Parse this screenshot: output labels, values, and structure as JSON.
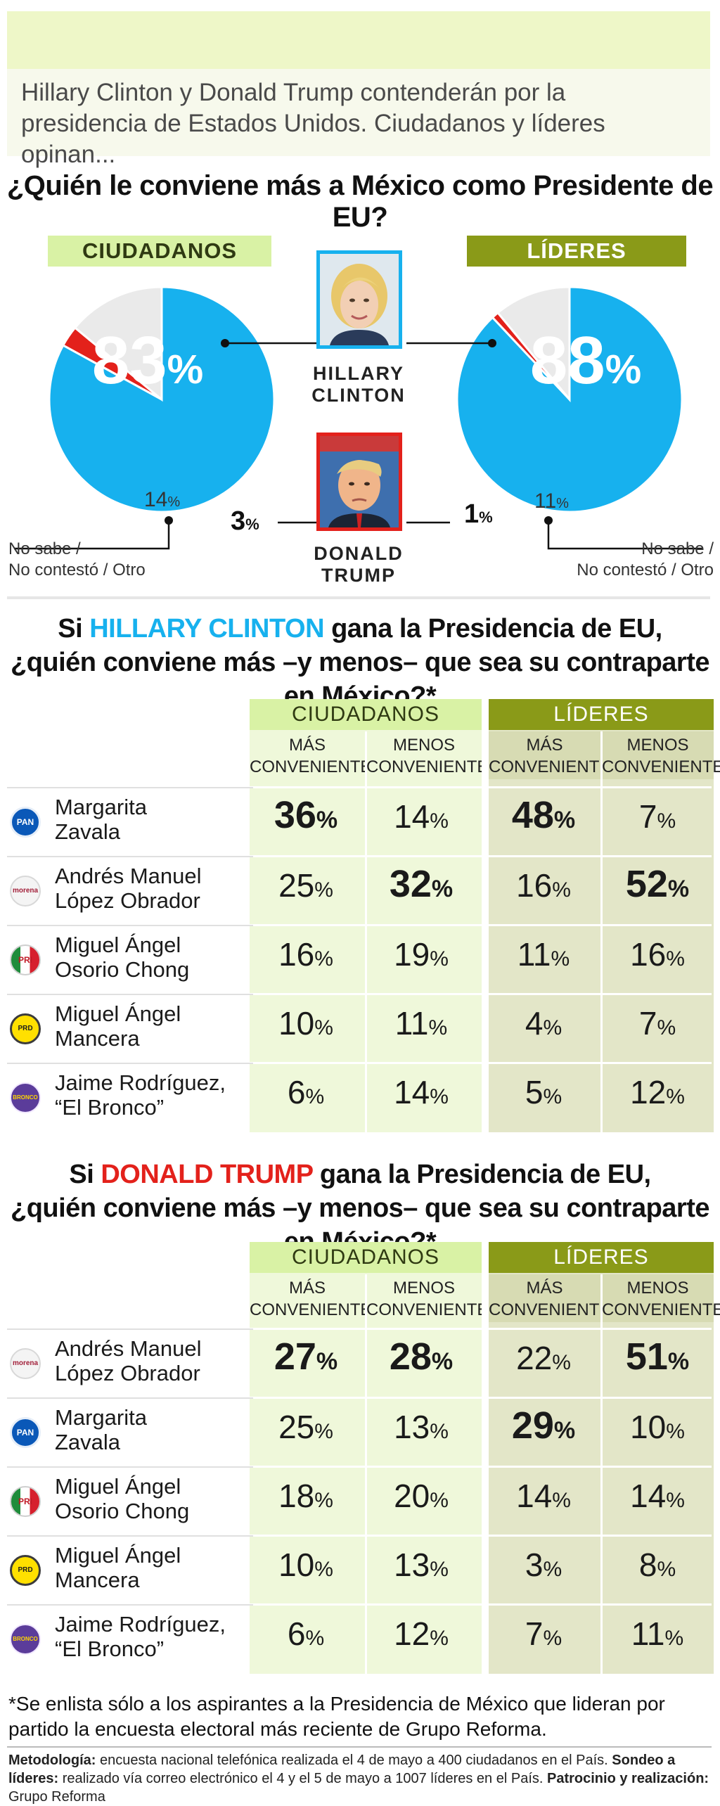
{
  "header": {
    "intro": "Hillary Clinton y Donald Trump contenderán por la presidencia de Estados Unidos. Ciudadanos y líderes opinan..."
  },
  "question1": "¿Quién le conviene más a México como Presidente de EU?",
  "groups": {
    "ciudadanos": "CIUDADANOS",
    "lideres": "LÍDERES"
  },
  "candidates": {
    "clinton": "HILLARY CLINTON",
    "trump": "DONALD TRUMP"
  },
  "pie_labels": {
    "ciud_clinton": "83",
    "ciud_trump": "3",
    "ciud_other": "14",
    "lid_clinton": "88",
    "lid_trump": "1",
    "lid_other": "11",
    "pct": "%",
    "nosabe_1": "No sabe /",
    "nosabe_2": "No contestó / Otro"
  },
  "colors": {
    "clinton": "#17b1ee",
    "trump": "#e3211b",
    "other": "#eaeaea",
    "ciud_band": "#d9f2a5",
    "lid_band": "#8a9a18"
  },
  "section2": {
    "q_pre": "Si ",
    "q_name": "HILLARY CLINTON",
    "q_post": " gana la Presidencia de EU,",
    "q_line2": "¿quién conviene más –y menos– que sea su contraparte en México?*"
  },
  "section3": {
    "q_pre": "Si ",
    "q_name": "DONALD TRUMP",
    "q_post": " gana la Presidencia de EU,",
    "q_line2": "¿quién conviene más –y menos– que sea su contraparte en México?*"
  },
  "table_headers": {
    "mas_1": "MÁS",
    "mas_2": "CONVENIENTE",
    "menos_1": "MENOS",
    "menos_2": "CONVENIENTE"
  },
  "party_logos": {
    "pan": "PAN",
    "morena": "morena",
    "pri": "PRI",
    "prd": "PRD",
    "bronco": "BRONCO"
  },
  "chart_data": [
    {
      "type": "pie",
      "title": "CIUDADANOS",
      "categories": [
        "HILLARY CLINTON",
        "DONALD TRUMP",
        "No sabe / No contestó / Otro"
      ],
      "values": [
        83,
        3,
        14
      ]
    },
    {
      "type": "pie",
      "title": "LÍDERES",
      "categories": [
        "HILLARY CLINTON",
        "DONALD TRUMP",
        "No sabe / No contestó / Otro"
      ],
      "values": [
        88,
        1,
        11
      ]
    },
    {
      "type": "table",
      "title": "Si HILLARY CLINTON gana la Presidencia de EU, ¿quién conviene más –y menos– que sea su contraparte en México?*",
      "columns": [
        "CIUDADANOS MÁS CONVENIENTE",
        "CIUDADANOS MENOS CONVENIENTE",
        "LÍDERES MÁS CONVENIENTE",
        "LÍDERES MENOS CONVENIENTE"
      ],
      "rows": [
        {
          "name_1": "Margarita",
          "name_2": "Zavala",
          "party": "pan",
          "values": [
            36,
            14,
            48,
            7
          ],
          "bold": [
            true,
            false,
            true,
            false
          ]
        },
        {
          "name_1": "Andrés Manuel",
          "name_2": "López Obrador",
          "party": "morena",
          "values": [
            25,
            32,
            16,
            52
          ],
          "bold": [
            false,
            true,
            false,
            true
          ]
        },
        {
          "name_1": "Miguel Ángel",
          "name_2": "Osorio Chong",
          "party": "pri",
          "values": [
            16,
            19,
            11,
            16
          ],
          "bold": [
            false,
            false,
            false,
            false
          ]
        },
        {
          "name_1": "Miguel Ángel",
          "name_2": "Mancera",
          "party": "prd",
          "values": [
            10,
            11,
            4,
            7
          ],
          "bold": [
            false,
            false,
            false,
            false
          ]
        },
        {
          "name_1": "Jaime Rodríguez,",
          "name_2": "“El Bronco”",
          "party": "bronco",
          "values": [
            6,
            14,
            5,
            12
          ],
          "bold": [
            false,
            false,
            false,
            false
          ]
        }
      ]
    },
    {
      "type": "table",
      "title": "Si DONALD TRUMP gana la Presidencia de EU, ¿quién conviene más –y menos– que sea su contraparte en México?*",
      "columns": [
        "CIUDADANOS MÁS CONVENIENTE",
        "CIUDADANOS MENOS CONVENIENTE",
        "LÍDERES MÁS CONVENIENTE",
        "LÍDERES MENOS CONVENIENTE"
      ],
      "rows": [
        {
          "name_1": "Andrés Manuel",
          "name_2": "López Obrador",
          "party": "morena",
          "values": [
            27,
            28,
            22,
            51
          ],
          "bold": [
            true,
            true,
            false,
            true
          ]
        },
        {
          "name_1": "Margarita",
          "name_2": "Zavala",
          "party": "pan",
          "values": [
            25,
            13,
            29,
            10
          ],
          "bold": [
            false,
            false,
            true,
            false
          ]
        },
        {
          "name_1": "Miguel Ángel",
          "name_2": "Osorio Chong",
          "party": "pri",
          "values": [
            18,
            20,
            14,
            14
          ],
          "bold": [
            false,
            false,
            false,
            false
          ]
        },
        {
          "name_1": "Miguel Ángel",
          "name_2": "Mancera",
          "party": "prd",
          "values": [
            10,
            13,
            3,
            8
          ],
          "bold": [
            false,
            false,
            false,
            false
          ]
        },
        {
          "name_1": "Jaime Rodríguez,",
          "name_2": "“El Bronco”",
          "party": "bronco",
          "values": [
            6,
            12,
            7,
            11
          ],
          "bold": [
            false,
            false,
            false,
            false
          ]
        }
      ]
    }
  ],
  "footer": {
    "note": "*Se enlista sólo a los aspirantes a la Presidencia de México que lideran por partido la encuesta electoral más reciente de Grupo Reforma.",
    "met_label": "Metodología:",
    "met_text": " encuesta nacional telefónica realizada el 4 de mayo a 400 ciudadanos en el País. ",
    "sondeo_label": "Sondeo a líderes:",
    "sondeo_text": " realizado vía correo electrónico el 4 y el 5 de mayo a 1007 líderes en el País. ",
    "patro_label": "Patrocinio y realización:",
    "patro_text": " Grupo Reforma"
  }
}
